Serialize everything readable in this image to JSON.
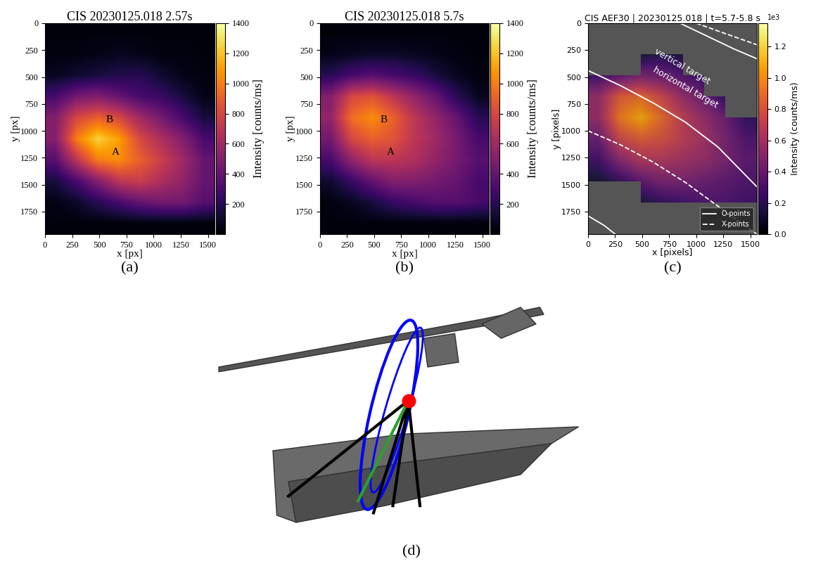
{
  "chart_data": [
    {
      "type": "heatmap",
      "panel_label": "(a)",
      "title": "CIS 20230125.018 2.57s",
      "xlabel": "x [px]",
      "ylabel": "y [px]",
      "xlim": [
        0,
        1560
      ],
      "ylim": [
        1960,
        0
      ],
      "xticks": [
        0,
        250,
        500,
        750,
        1000,
        1250,
        1500
      ],
      "yticks": [
        0,
        250,
        500,
        750,
        1000,
        1250,
        1500,
        1750
      ],
      "cells": [
        [
          30,
          30,
          30,
          30,
          30,
          30,
          30,
          30
        ],
        [
          40,
          40,
          60,
          80,
          60,
          40,
          40,
          30
        ],
        [
          80,
          120,
          150,
          180,
          200,
          120,
          60,
          40
        ],
        [
          300,
          450,
          500,
          400,
          300,
          250,
          150,
          60
        ],
        [
          500,
          800,
          900,
          800,
          600,
          450,
          300,
          150
        ],
        [
          500,
          1000,
          1250,
          1100,
          800,
          650,
          500,
          300
        ],
        [
          350,
          700,
          1000,
          1050,
          900,
          750,
          600,
          400
        ],
        [
          150,
          300,
          500,
          700,
          750,
          650,
          550,
          400
        ],
        [
          50,
          100,
          200,
          300,
          400,
          450,
          450,
          350
        ],
        [
          30,
          30,
          30,
          30,
          30,
          30,
          30,
          30
        ]
      ],
      "colorbar": {
        "label": "Intensity [counts/ms]",
        "range": [
          0,
          1400
        ],
        "ticks": [
          200,
          400,
          600,
          800,
          1000,
          1200,
          1400
        ]
      },
      "annotations": [
        {
          "text": "A",
          "x": 650,
          "y": 1200
        },
        {
          "text": "B",
          "x": 590,
          "y": 900
        }
      ]
    },
    {
      "type": "heatmap",
      "panel_label": "(b)",
      "title": "CIS 20230125.018 5.7s",
      "xlabel": "x [px]",
      "ylabel": "y [px]",
      "xlim": [
        0,
        1560
      ],
      "ylim": [
        1960,
        0
      ],
      "xticks": [
        0,
        250,
        500,
        750,
        1000,
        1250,
        1500
      ],
      "yticks": [
        0,
        250,
        500,
        750,
        1000,
        1250,
        1500,
        1750
      ],
      "cells": [
        [
          30,
          30,
          30,
          30,
          30,
          30,
          30,
          30
        ],
        [
          60,
          80,
          100,
          100,
          80,
          60,
          40,
          30
        ],
        [
          200,
          300,
          350,
          300,
          250,
          150,
          80,
          40
        ],
        [
          500,
          800,
          850,
          700,
          550,
          400,
          200,
          80
        ],
        [
          550,
          950,
          1050,
          900,
          700,
          550,
          400,
          200
        ],
        [
          450,
          800,
          900,
          850,
          700,
          600,
          450,
          300
        ],
        [
          300,
          550,
          700,
          700,
          650,
          550,
          450,
          350
        ],
        [
          120,
          250,
          400,
          500,
          500,
          450,
          400,
          300
        ],
        [
          40,
          80,
          150,
          250,
          300,
          350,
          350,
          300
        ],
        [
          30,
          30,
          30,
          30,
          30,
          30,
          30,
          30
        ]
      ],
      "colorbar": {
        "label": "Intensity [counts/ms]",
        "range": [
          0,
          1400
        ],
        "ticks": [
          200,
          400,
          600,
          800,
          1000,
          1200,
          1400
        ]
      },
      "annotations": [
        {
          "text": "A",
          "x": 650,
          "y": 1200
        },
        {
          "text": "B",
          "x": 590,
          "y": 900
        }
      ]
    },
    {
      "type": "heatmap",
      "panel_label": "(c)",
      "title": "CIS AEF30 | 20230125.018 | t=5.7-5.8 s",
      "xlabel": "x [pixels]",
      "ylabel": "y [pixels]",
      "xlim": [
        0,
        1560
      ],
      "ylim": [
        1960,
        0
      ],
      "xticks": [
        0,
        250,
        500,
        750,
        1000,
        1250,
        1500
      ],
      "yticks": [
        0,
        250,
        500,
        750,
        1000,
        1250,
        1500,
        1750
      ],
      "cells": [
        [
          null,
          null,
          null,
          null,
          null,
          null,
          null,
          null
        ],
        [
          null,
          null,
          120,
          150,
          120,
          null,
          null,
          null
        ],
        [
          250,
          350,
          450,
          400,
          300,
          200,
          null,
          null
        ],
        [
          550,
          850,
          900,
          750,
          550,
          400,
          200,
          null
        ],
        [
          550,
          950,
          1100,
          900,
          700,
          550,
          400,
          200
        ],
        [
          400,
          750,
          850,
          800,
          700,
          600,
          450,
          300
        ],
        [
          250,
          500,
          650,
          650,
          600,
          550,
          450,
          350
        ],
        [
          100,
          200,
          350,
          450,
          450,
          400,
          350,
          300
        ],
        [
          null,
          null,
          120,
          200,
          250,
          300,
          300,
          250
        ],
        [
          null,
          null,
          null,
          null,
          null,
          null,
          null,
          null
        ]
      ],
      "colorbar": {
        "label": "Intensity (counts/ms)",
        "range": [
          0,
          1350
        ],
        "ticks": [
          {
            "value": 0,
            "label": "0.0"
          },
          {
            "value": 200,
            "label": "0.2"
          },
          {
            "value": 400,
            "label": "0.4"
          },
          {
            "value": 600,
            "label": "0.6"
          },
          {
            "value": 800,
            "label": "0.8"
          },
          {
            "value": 1000,
            "label": "1.0"
          },
          {
            "value": 1200,
            "label": "1.2"
          }
        ],
        "offset": "1e3"
      },
      "annotations": [
        {
          "text": "vertical target",
          "x": 870,
          "y": 400
        },
        {
          "text": "horizontal target",
          "x": 900,
          "y": 600
        }
      ],
      "legend": "lower right",
      "series": [
        {
          "name": "O-points",
          "color": "white",
          "line_style": "solid",
          "curves": [
            {
              "x": [
                0,
                300,
                600,
                900,
                1200,
                1560
              ],
              "y": [
                440,
                580,
                740,
                920,
                1150,
                1520
              ]
            },
            {
              "x": [
                850,
                1100,
                1350,
                1560
              ],
              "y": [
                0,
                120,
                240,
                330
              ]
            },
            {
              "x": [
                0,
                150,
                250
              ],
              "y": [
                1790,
                1880,
                1960
              ]
            }
          ]
        },
        {
          "name": "X-points",
          "color": "white",
          "line_style": "dashed",
          "curves": [
            {
              "x": [
                0,
                300,
                600,
                900,
                1200,
                1560
              ],
              "y": [
                1000,
                1130,
                1290,
                1480,
                1700,
                1960
              ]
            },
            {
              "x": [
                1000,
                1250,
                1560
              ],
              "y": [
                0,
                90,
                200
              ]
            }
          ]
        }
      ]
    }
  ],
  "diagram": {
    "panel_label": "(d)"
  }
}
